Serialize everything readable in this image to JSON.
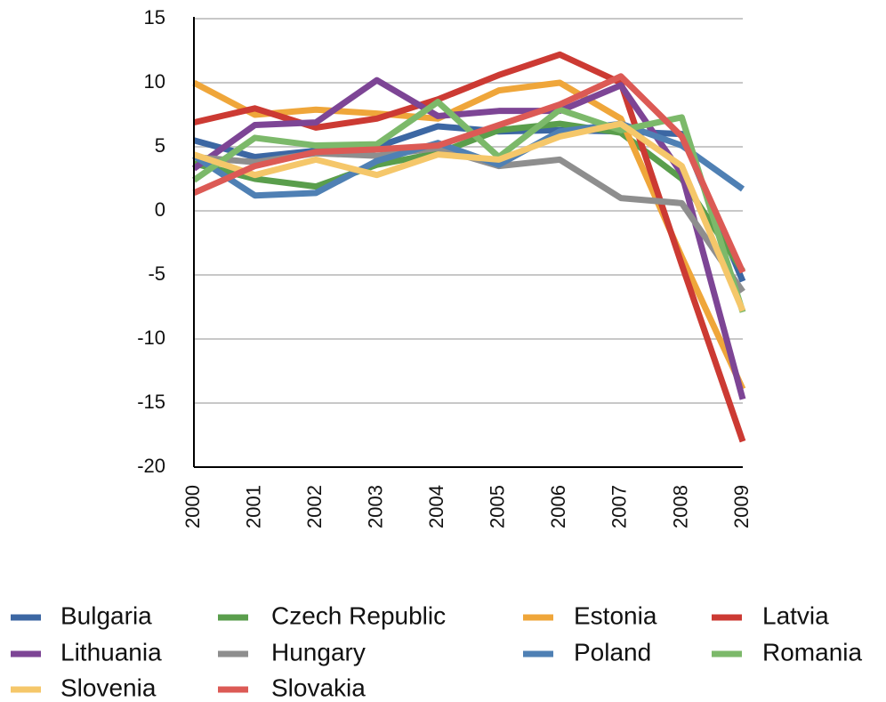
{
  "chart_data": {
    "type": "line",
    "categories": [
      "2000",
      "2001",
      "2002",
      "2003",
      "2004",
      "2005",
      "2006",
      "2007",
      "2008",
      "2009"
    ],
    "ylim": [
      -20,
      15
    ],
    "yticks": [
      -20,
      -15,
      -10,
      -5,
      0,
      5,
      10,
      15
    ],
    "grid": true,
    "series": [
      {
        "name": "Bulgaria",
        "color": "#3c67a3",
        "values": [
          5.5,
          4.2,
          4.7,
          5.0,
          6.6,
          6.2,
          6.3,
          6.2,
          6.0,
          -5.5
        ]
      },
      {
        "name": "Czech Republic",
        "color": "#5a9e4c",
        "values": [
          3.7,
          2.5,
          1.9,
          3.6,
          4.5,
          6.3,
          6.8,
          6.1,
          2.5,
          -4.7
        ]
      },
      {
        "name": "Estonia",
        "color": "#efa63a",
        "values": [
          10.0,
          7.5,
          7.9,
          7.6,
          7.2,
          9.4,
          10.0,
          7.2,
          -3.6,
          -13.9
        ]
      },
      {
        "name": "Latvia",
        "color": "#cc3a33",
        "values": [
          6.9,
          8.0,
          6.5,
          7.2,
          8.7,
          10.6,
          12.2,
          10.0,
          -4.2,
          -18.0
        ]
      },
      {
        "name": "Lithuania",
        "color": "#7d4595",
        "values": [
          3.3,
          6.7,
          6.9,
          10.2,
          7.4,
          7.8,
          7.8,
          9.8,
          2.9,
          -14.7
        ]
      },
      {
        "name": "Hungary",
        "color": "#8e8e8e",
        "values": [
          4.2,
          3.8,
          4.5,
          4.3,
          4.9,
          3.5,
          4.0,
          1.0,
          0.6,
          -6.3
        ]
      },
      {
        "name": "Poland",
        "color": "#4f80b4",
        "values": [
          4.3,
          1.2,
          1.4,
          3.9,
          5.3,
          3.6,
          6.2,
          6.8,
          5.1,
          1.7
        ]
      },
      {
        "name": "Romania",
        "color": "#7cb96a",
        "values": [
          2.4,
          5.7,
          5.1,
          5.2,
          8.5,
          4.2,
          7.9,
          6.3,
          7.3,
          -7.9
        ]
      },
      {
        "name": "Slovenia",
        "color": "#f5c76a",
        "values": [
          4.4,
          2.8,
          4.0,
          2.8,
          4.4,
          4.0,
          5.8,
          6.8,
          3.5,
          -7.8
        ]
      },
      {
        "name": "Slovakia",
        "color": "#dc5a55",
        "values": [
          1.4,
          3.5,
          4.6,
          4.8,
          5.1,
          6.7,
          8.3,
          10.5,
          5.8,
          -4.8
        ]
      }
    ]
  }
}
